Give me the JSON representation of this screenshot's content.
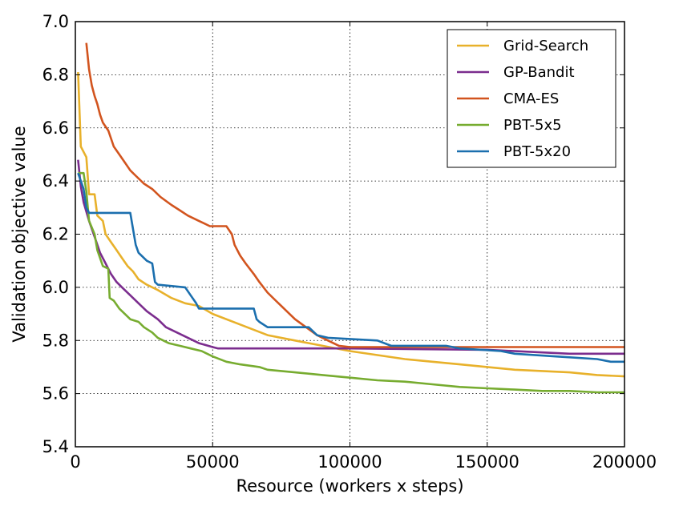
{
  "chart_data": {
    "type": "line",
    "title": "",
    "xlabel": "Resource (workers x steps)",
    "ylabel": "Validation objective value",
    "xlim": [
      0,
      200000
    ],
    "ylim": [
      5.4,
      7.0
    ],
    "xticks": [
      0,
      50000,
      100000,
      150000,
      200000
    ],
    "xtick_labels": [
      "0",
      "50000",
      "100000",
      "150000",
      "200000"
    ],
    "yticks": [
      5.4,
      5.6,
      5.8,
      6.0,
      6.2,
      6.4,
      6.6,
      6.8,
      7.0
    ],
    "ytick_labels": [
      "5.4",
      "5.6",
      "5.8",
      "6.0",
      "6.2",
      "6.4",
      "6.6",
      "6.8",
      "7.0"
    ],
    "grid": true,
    "legend_position": "top-right",
    "series": [
      {
        "name": "Grid-Search",
        "color": "#e8b12b",
        "points": [
          [
            1000,
            6.81
          ],
          [
            2000,
            6.53
          ],
          [
            4000,
            6.49
          ],
          [
            5000,
            6.35
          ],
          [
            7000,
            6.35
          ],
          [
            8000,
            6.27
          ],
          [
            10000,
            6.25
          ],
          [
            11000,
            6.2
          ],
          [
            13000,
            6.17
          ],
          [
            15000,
            6.14
          ],
          [
            17000,
            6.11
          ],
          [
            19000,
            6.08
          ],
          [
            21000,
            6.06
          ],
          [
            23000,
            6.03
          ],
          [
            26000,
            6.01
          ],
          [
            30000,
            5.99
          ],
          [
            35000,
            5.96
          ],
          [
            40000,
            5.94
          ],
          [
            45000,
            5.93
          ],
          [
            50000,
            5.9
          ],
          [
            60000,
            5.86
          ],
          [
            70000,
            5.82
          ],
          [
            80000,
            5.8
          ],
          [
            90000,
            5.78
          ],
          [
            100000,
            5.76
          ],
          [
            110000,
            5.745
          ],
          [
            120000,
            5.73
          ],
          [
            130000,
            5.72
          ],
          [
            140000,
            5.71
          ],
          [
            150000,
            5.7
          ],
          [
            160000,
            5.69
          ],
          [
            170000,
            5.685
          ],
          [
            180000,
            5.68
          ],
          [
            190000,
            5.67
          ],
          [
            200000,
            5.665
          ]
        ]
      },
      {
        "name": "GP-Bandit",
        "color": "#7b2d8e",
        "points": [
          [
            1000,
            6.48
          ],
          [
            2000,
            6.38
          ],
          [
            3000,
            6.32
          ],
          [
            5000,
            6.25
          ],
          [
            7000,
            6.19
          ],
          [
            9000,
            6.13
          ],
          [
            11000,
            6.09
          ],
          [
            13000,
            6.05
          ],
          [
            15000,
            6.02
          ],
          [
            17000,
            6.0
          ],
          [
            20000,
            5.97
          ],
          [
            23000,
            5.94
          ],
          [
            26000,
            5.91
          ],
          [
            30000,
            5.88
          ],
          [
            33000,
            5.85
          ],
          [
            37000,
            5.83
          ],
          [
            41000,
            5.81
          ],
          [
            45000,
            5.79
          ],
          [
            50000,
            5.775
          ],
          [
            52000,
            5.77
          ],
          [
            100000,
            5.77
          ],
          [
            150000,
            5.765
          ],
          [
            180000,
            5.75
          ],
          [
            200000,
            5.75
          ]
        ]
      },
      {
        "name": "CMA-ES",
        "color": "#d2541e",
        "points": [
          [
            4000,
            6.92
          ],
          [
            5000,
            6.82
          ],
          [
            6000,
            6.76
          ],
          [
            7000,
            6.72
          ],
          [
            8000,
            6.69
          ],
          [
            9000,
            6.65
          ],
          [
            10000,
            6.62
          ],
          [
            12000,
            6.59
          ],
          [
            13000,
            6.56
          ],
          [
            14000,
            6.53
          ],
          [
            16000,
            6.5
          ],
          [
            18000,
            6.47
          ],
          [
            20000,
            6.44
          ],
          [
            22000,
            6.42
          ],
          [
            25000,
            6.39
          ],
          [
            28000,
            6.37
          ],
          [
            31000,
            6.34
          ],
          [
            35000,
            6.31
          ],
          [
            38000,
            6.29
          ],
          [
            41000,
            6.27
          ],
          [
            45000,
            6.25
          ],
          [
            49000,
            6.23
          ],
          [
            55000,
            6.23
          ],
          [
            57000,
            6.2
          ],
          [
            58000,
            6.16
          ],
          [
            60000,
            6.12
          ],
          [
            62000,
            6.09
          ],
          [
            65000,
            6.05
          ],
          [
            67000,
            6.02
          ],
          [
            70000,
            5.98
          ],
          [
            73000,
            5.95
          ],
          [
            76000,
            5.92
          ],
          [
            80000,
            5.88
          ],
          [
            84000,
            5.85
          ],
          [
            88000,
            5.82
          ],
          [
            92000,
            5.8
          ],
          [
            96000,
            5.78
          ],
          [
            100000,
            5.775
          ],
          [
            105000,
            5.775
          ],
          [
            150000,
            5.775
          ],
          [
            200000,
            5.775
          ]
        ]
      },
      {
        "name": "PBT-5x5",
        "color": "#77ac30",
        "points": [
          [
            1000,
            6.43
          ],
          [
            3000,
            6.43
          ],
          [
            4000,
            6.36
          ],
          [
            5000,
            6.25
          ],
          [
            7000,
            6.2
          ],
          [
            8000,
            6.14
          ],
          [
            10000,
            6.08
          ],
          [
            12000,
            6.07
          ],
          [
            12500,
            5.96
          ],
          [
            14000,
            5.95
          ],
          [
            16000,
            5.92
          ],
          [
            18000,
            5.9
          ],
          [
            20000,
            5.88
          ],
          [
            23000,
            5.87
          ],
          [
            25000,
            5.85
          ],
          [
            28000,
            5.83
          ],
          [
            30000,
            5.81
          ],
          [
            34000,
            5.79
          ],
          [
            38000,
            5.78
          ],
          [
            42000,
            5.77
          ],
          [
            46000,
            5.76
          ],
          [
            50000,
            5.74
          ],
          [
            55000,
            5.72
          ],
          [
            60000,
            5.71
          ],
          [
            67000,
            5.7
          ],
          [
            70000,
            5.69
          ],
          [
            80000,
            5.68
          ],
          [
            90000,
            5.67
          ],
          [
            100000,
            5.66
          ],
          [
            110000,
            5.65
          ],
          [
            120000,
            5.645
          ],
          [
            130000,
            5.635
          ],
          [
            140000,
            5.625
          ],
          [
            150000,
            5.62
          ],
          [
            160000,
            5.615
          ],
          [
            170000,
            5.61
          ],
          [
            180000,
            5.61
          ],
          [
            190000,
            5.605
          ],
          [
            200000,
            5.605
          ]
        ]
      },
      {
        "name": "PBT-5x20",
        "color": "#1b6fae",
        "points": [
          [
            1000,
            6.43
          ],
          [
            3000,
            6.37
          ],
          [
            4000,
            6.3
          ],
          [
            5000,
            6.28
          ],
          [
            20000,
            6.28
          ],
          [
            21000,
            6.22
          ],
          [
            22000,
            6.16
          ],
          [
            23000,
            6.13
          ],
          [
            26000,
            6.1
          ],
          [
            28000,
            6.09
          ],
          [
            29000,
            6.02
          ],
          [
            30000,
            6.01
          ],
          [
            40000,
            6.0
          ],
          [
            42000,
            5.97
          ],
          [
            44000,
            5.94
          ],
          [
            45000,
            5.92
          ],
          [
            65000,
            5.92
          ],
          [
            66000,
            5.88
          ],
          [
            67000,
            5.87
          ],
          [
            70000,
            5.85
          ],
          [
            85000,
            5.85
          ],
          [
            88000,
            5.82
          ],
          [
            92000,
            5.81
          ],
          [
            110000,
            5.8
          ],
          [
            115000,
            5.78
          ],
          [
            135000,
            5.78
          ],
          [
            140000,
            5.77
          ],
          [
            155000,
            5.76
          ],
          [
            160000,
            5.75
          ],
          [
            175000,
            5.74
          ],
          [
            190000,
            5.73
          ],
          [
            195000,
            5.72
          ],
          [
            200000,
            5.72
          ]
        ]
      }
    ]
  }
}
